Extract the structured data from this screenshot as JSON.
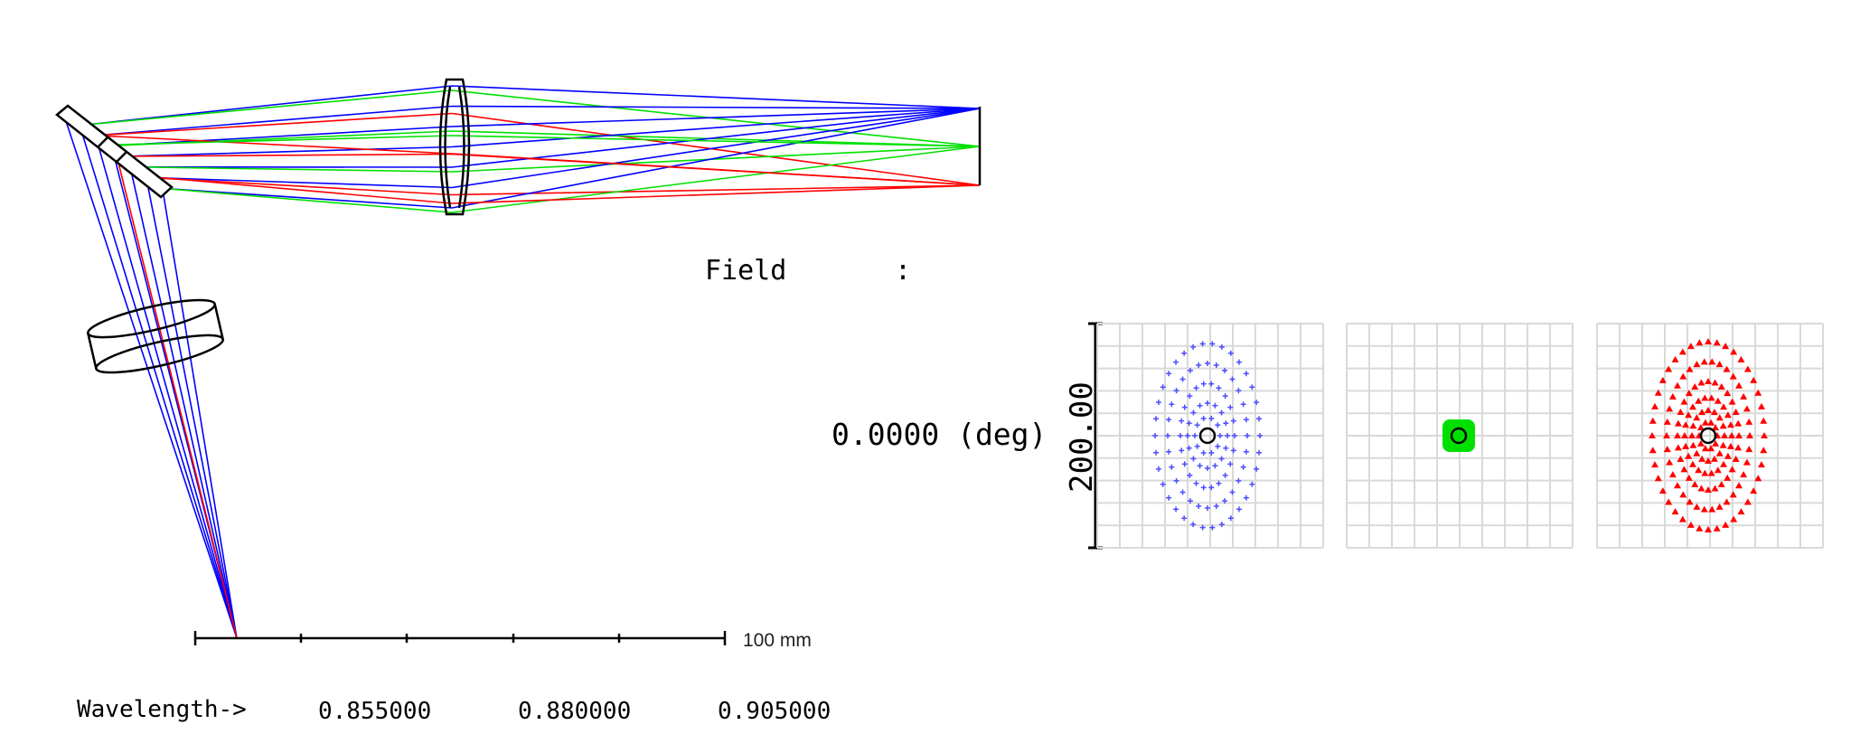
{
  "layout_view": {
    "scale_bar_label": "100 mm",
    "wavelength_caption": "Wavelength->",
    "wavelengths": [
      "0.855000",
      "0.880000",
      "0.905000"
    ]
  },
  "spot_diagram": {
    "field_label": "Field",
    "field_colon": ":",
    "field_value": "0.0000 (deg)",
    "scale_label": "200.00",
    "panels": [
      {
        "name": "spot-panel-0.855",
        "color": "#4d4dff",
        "marker": "plus"
      },
      {
        "name": "spot-panel-0.880",
        "color": "#00e000",
        "marker": "square"
      },
      {
        "name": "spot-panel-0.905",
        "color": "#ff0000",
        "marker": "triangle"
      }
    ]
  },
  "colors": {
    "blue_ray": "#0000ff",
    "green_ray": "#00e000",
    "red_ray": "#ff0000",
    "lens": "#000000",
    "grid": "#d9d9d9"
  }
}
